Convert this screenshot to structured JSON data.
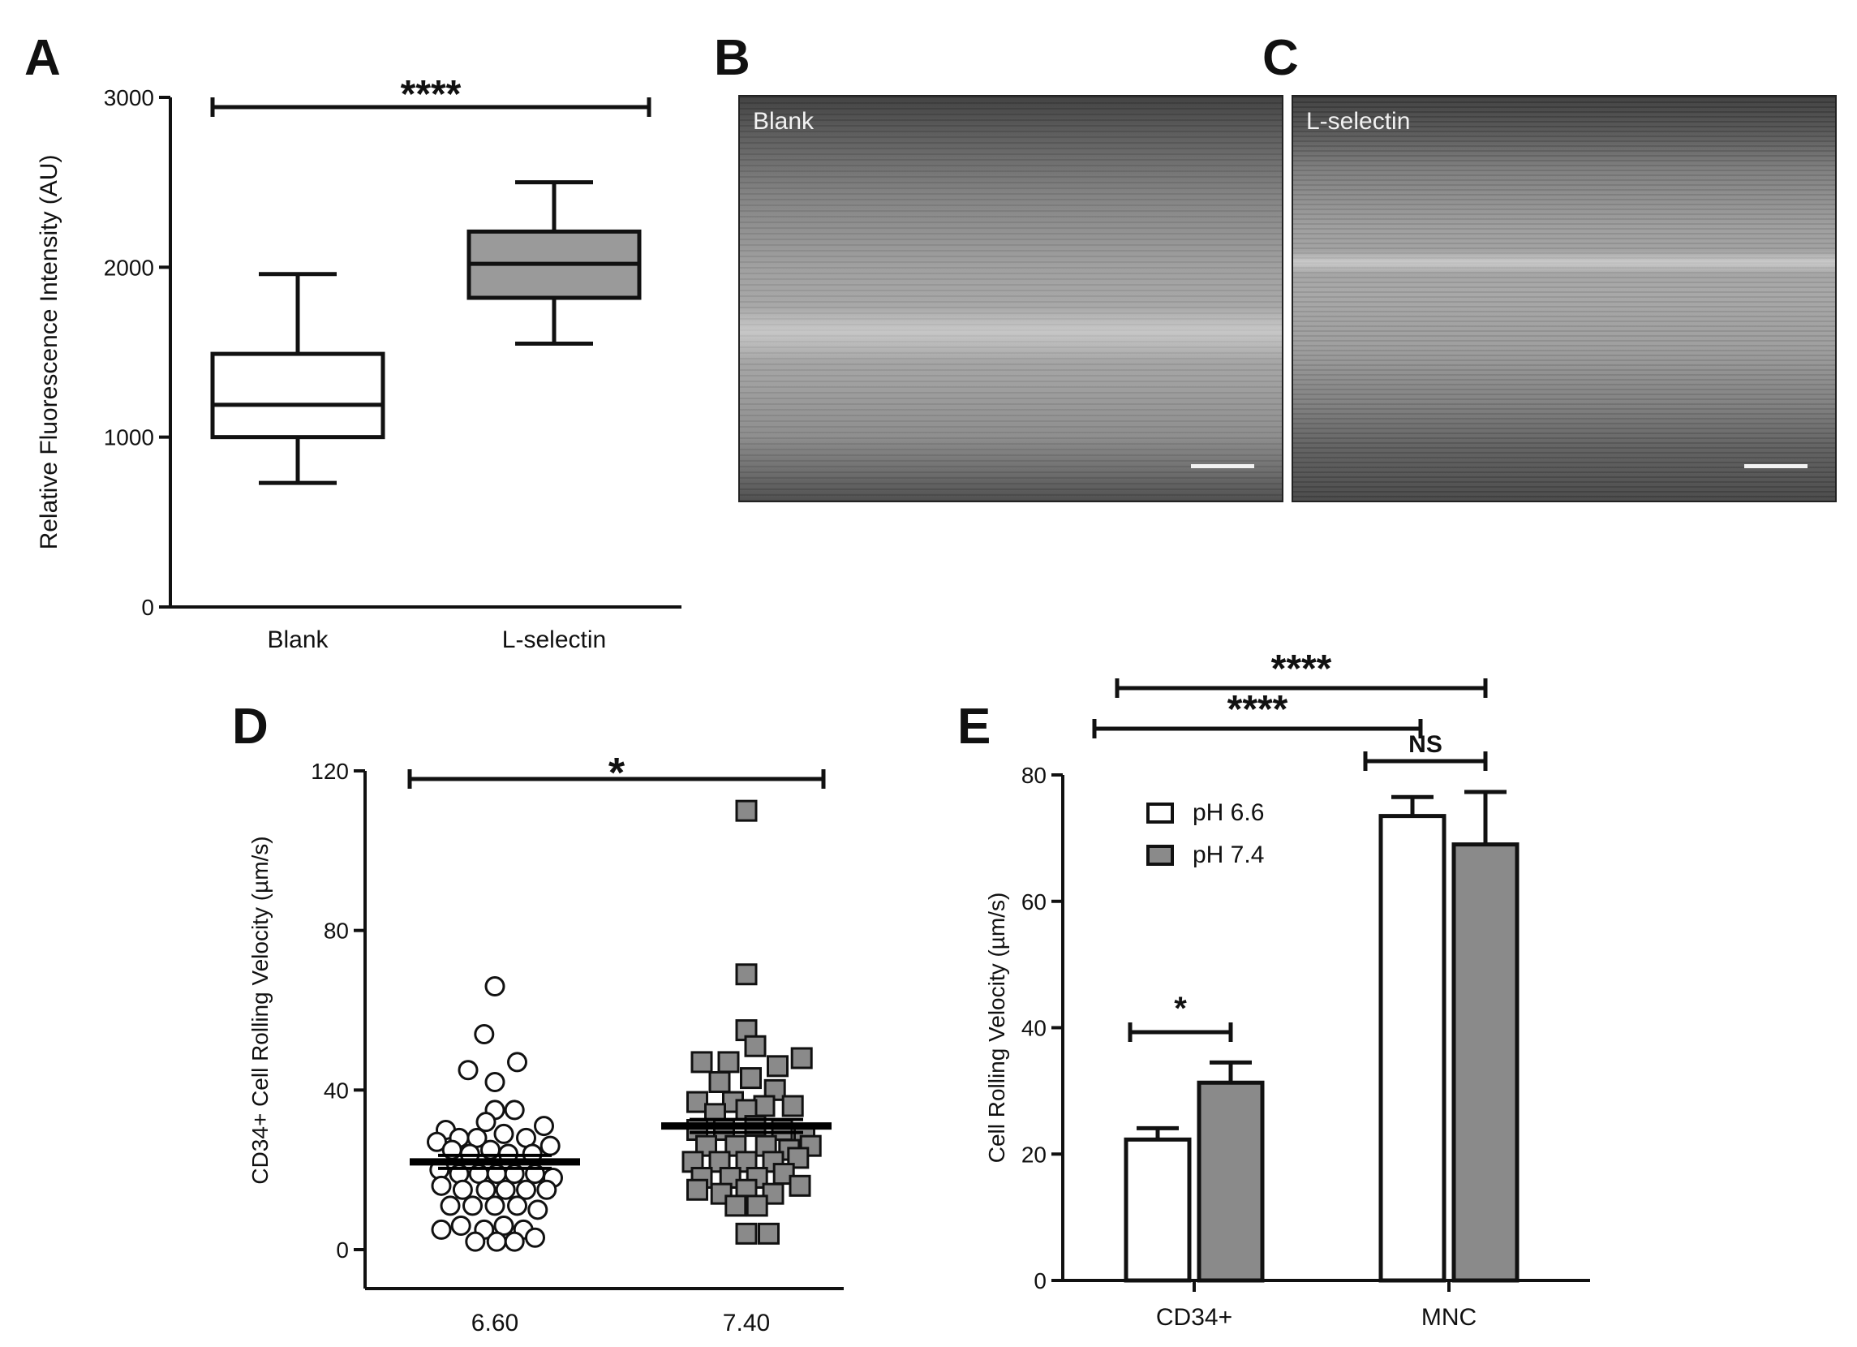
{
  "panels": {
    "A": {
      "letter": "A"
    },
    "B": {
      "letter": "B",
      "image_label": "Blank"
    },
    "C": {
      "letter": "C",
      "image_label": "L-selectin"
    },
    "D": {
      "letter": "D"
    },
    "E": {
      "letter": "E"
    }
  },
  "chart_data": [
    {
      "id": "A",
      "type": "box",
      "categories": [
        "Blank",
        "L-selectin"
      ],
      "boxes": [
        {
          "category": "Blank",
          "whisker_low": 730,
          "q1": 1000,
          "median": 1190,
          "q3": 1490,
          "whisker_high": 1960,
          "fill": "#ffffff"
        },
        {
          "category": "L-selectin",
          "whisker_low": 1550,
          "q1": 1820,
          "median": 2020,
          "q3": 2210,
          "whisker_high": 2500,
          "fill": "#9a9a9a"
        }
      ],
      "ylabel": "Relative Fluorescence Intensity (AU)",
      "ylim": [
        0,
        3000
      ],
      "yticks": [
        "0",
        "1000",
        "2000",
        "3000"
      ],
      "significance": [
        {
          "from": "Blank",
          "to": "L-selectin",
          "label": "****"
        }
      ]
    },
    {
      "id": "D",
      "type": "scatter",
      "categories": [
        "6.60",
        "7.40"
      ],
      "ylabel": "CD34+ Cell Rolling Velocity (µm/s)",
      "ylim": [
        0,
        120
      ],
      "yticks": [
        "0",
        "40",
        "80",
        "120"
      ],
      "series": [
        {
          "category": "6.60",
          "marker": "circle",
          "fill": "#ffffff",
          "mean": 22,
          "points": [
            {
              "dx": 0.0,
              "y": 66
            },
            {
              "dx": -0.12,
              "y": 54
            },
            {
              "dx": -0.3,
              "y": 45
            },
            {
              "dx": 0.25,
              "y": 47
            },
            {
              "dx": 0.0,
              "y": 42
            },
            {
              "dx": 0.0,
              "y": 35
            },
            {
              "dx": -0.1,
              "y": 32
            },
            {
              "dx": 0.22,
              "y": 35
            },
            {
              "dx": -0.55,
              "y": 30
            },
            {
              "dx": 0.55,
              "y": 31
            },
            {
              "dx": -0.4,
              "y": 28
            },
            {
              "dx": -0.2,
              "y": 28
            },
            {
              "dx": 0.1,
              "y": 29
            },
            {
              "dx": 0.35,
              "y": 28
            },
            {
              "dx": -0.65,
              "y": 27
            },
            {
              "dx": 0.62,
              "y": 26
            },
            {
              "dx": -0.48,
              "y": 25
            },
            {
              "dx": -0.28,
              "y": 24
            },
            {
              "dx": -0.05,
              "y": 25
            },
            {
              "dx": 0.15,
              "y": 24
            },
            {
              "dx": 0.42,
              "y": 24
            },
            {
              "dx": -0.62,
              "y": 20
            },
            {
              "dx": -0.4,
              "y": 19
            },
            {
              "dx": -0.18,
              "y": 19
            },
            {
              "dx": 0.02,
              "y": 19
            },
            {
              "dx": 0.22,
              "y": 19
            },
            {
              "dx": 0.45,
              "y": 19
            },
            {
              "dx": 0.65,
              "y": 18
            },
            {
              "dx": -0.6,
              "y": 16
            },
            {
              "dx": -0.36,
              "y": 15
            },
            {
              "dx": -0.1,
              "y": 15
            },
            {
              "dx": 0.12,
              "y": 15
            },
            {
              "dx": 0.35,
              "y": 15
            },
            {
              "dx": 0.58,
              "y": 15
            },
            {
              "dx": -0.5,
              "y": 11
            },
            {
              "dx": -0.25,
              "y": 11
            },
            {
              "dx": 0.0,
              "y": 11
            },
            {
              "dx": 0.25,
              "y": 11
            },
            {
              "dx": 0.48,
              "y": 10
            },
            {
              "dx": -0.6,
              "y": 5
            },
            {
              "dx": -0.38,
              "y": 6
            },
            {
              "dx": -0.12,
              "y": 5
            },
            {
              "dx": 0.1,
              "y": 6
            },
            {
              "dx": 0.32,
              "y": 5
            },
            {
              "dx": -0.22,
              "y": 2
            },
            {
              "dx": 0.02,
              "y": 2
            },
            {
              "dx": 0.22,
              "y": 2
            },
            {
              "dx": 0.45,
              "y": 3
            }
          ]
        },
        {
          "category": "7.40",
          "marker": "square",
          "fill": "#8a8a8a",
          "mean": 31,
          "points": [
            {
              "dx": 0.0,
              "y": 110
            },
            {
              "dx": 0.0,
              "y": 69
            },
            {
              "dx": 0.0,
              "y": 55
            },
            {
              "dx": -0.5,
              "y": 47
            },
            {
              "dx": -0.2,
              "y": 47
            },
            {
              "dx": 0.1,
              "y": 51
            },
            {
              "dx": 0.35,
              "y": 46
            },
            {
              "dx": 0.62,
              "y": 48
            },
            {
              "dx": -0.3,
              "y": 42
            },
            {
              "dx": 0.05,
              "y": 43
            },
            {
              "dx": 0.32,
              "y": 40
            },
            {
              "dx": -0.55,
              "y": 37
            },
            {
              "dx": -0.15,
              "y": 37
            },
            {
              "dx": 0.2,
              "y": 36
            },
            {
              "dx": 0.52,
              "y": 36
            },
            {
              "dx": -0.35,
              "y": 34
            },
            {
              "dx": 0.0,
              "y": 35
            },
            {
              "dx": -0.55,
              "y": 30
            },
            {
              "dx": -0.25,
              "y": 30
            },
            {
              "dx": 0.1,
              "y": 31
            },
            {
              "dx": 0.4,
              "y": 30
            },
            {
              "dx": 0.65,
              "y": 29
            },
            {
              "dx": -0.45,
              "y": 26
            },
            {
              "dx": -0.12,
              "y": 26
            },
            {
              "dx": 0.22,
              "y": 26
            },
            {
              "dx": 0.48,
              "y": 25
            },
            {
              "dx": 0.72,
              "y": 26
            },
            {
              "dx": -0.6,
              "y": 22
            },
            {
              "dx": -0.3,
              "y": 22
            },
            {
              "dx": 0.0,
              "y": 22
            },
            {
              "dx": 0.3,
              "y": 22
            },
            {
              "dx": 0.58,
              "y": 23
            },
            {
              "dx": -0.5,
              "y": 18
            },
            {
              "dx": -0.18,
              "y": 18
            },
            {
              "dx": 0.12,
              "y": 18
            },
            {
              "dx": 0.42,
              "y": 19
            },
            {
              "dx": -0.55,
              "y": 15
            },
            {
              "dx": -0.28,
              "y": 14
            },
            {
              "dx": 0.0,
              "y": 15
            },
            {
              "dx": 0.3,
              "y": 14
            },
            {
              "dx": 0.6,
              "y": 16
            },
            {
              "dx": -0.12,
              "y": 11
            },
            {
              "dx": 0.12,
              "y": 11
            },
            {
              "dx": 0.0,
              "y": 4
            },
            {
              "dx": 0.25,
              "y": 4
            }
          ]
        }
      ],
      "significance": [
        {
          "from": "6.60",
          "to": "7.40",
          "label": "*"
        }
      ]
    },
    {
      "id": "E",
      "type": "bar",
      "categories": [
        "CD34+",
        "MNC"
      ],
      "ylabel": "Cell Rolling Velocity (µm/s)",
      "ylim": [
        0,
        80
      ],
      "yticks": [
        "0",
        "20",
        "40",
        "60",
        "80"
      ],
      "series": [
        {
          "name": "pH 6.6",
          "color": "#ffffff",
          "values": [
            22.3,
            73.5
          ],
          "errors": [
            1.8,
            3.0
          ]
        },
        {
          "name": "pH 7.4",
          "color": "#8a8a8a",
          "values": [
            31.3,
            69.0
          ],
          "errors": [
            3.2,
            8.3
          ]
        }
      ],
      "legend": "top-left",
      "significance": [
        {
          "label": "****",
          "between": "CD34+ pH 7.4 – MNC pH 7.4"
        },
        {
          "label": "****",
          "between": "CD34+ pH 6.6 – MNC pH 6.6"
        },
        {
          "label": "NS",
          "between": "MNC pH 6.6 – MNC pH 7.4"
        },
        {
          "label": "*",
          "between": "CD34+ pH 6.6 – CD34+ pH 7.4"
        }
      ]
    }
  ]
}
